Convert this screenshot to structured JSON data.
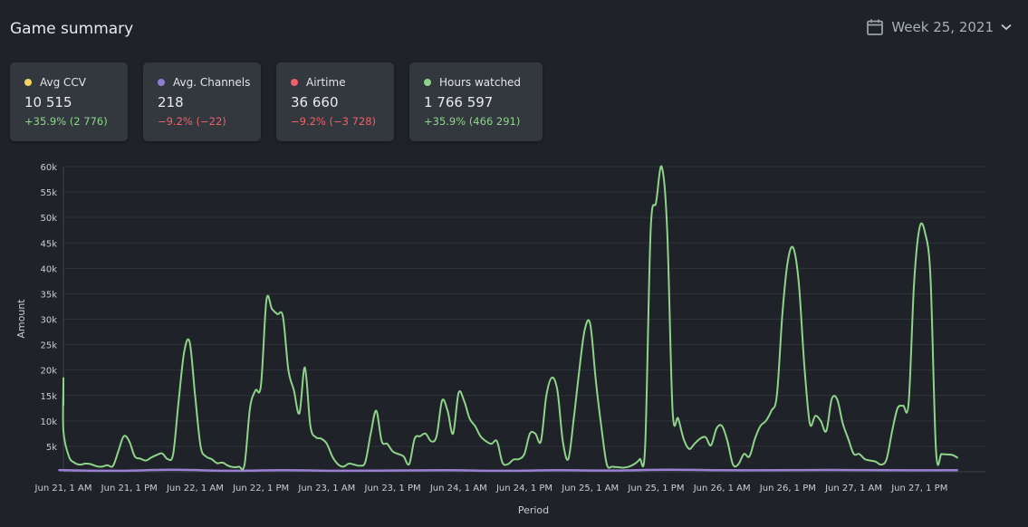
{
  "header": {
    "title": "Game summary",
    "week_label": "Week 25, 2021",
    "calendar_icon": "calendar-icon",
    "chevron_icon": "chevron-down-icon"
  },
  "cards": [
    {
      "label": "Avg CCV",
      "value": "10 515",
      "change": "+35.9% (2 776)",
      "dot_color": "#f3d463",
      "change_color": "#8fd38a"
    },
    {
      "label": "Avg. Channels",
      "value": "218",
      "change": "−9.2% (−22)",
      "dot_color": "#8c7fd1",
      "change_color": "#f0606a"
    },
    {
      "label": "Airtime",
      "value": "36 660",
      "change": "−9.2% (−3 728)",
      "dot_color": "#f0606a",
      "change_color": "#f0606a"
    },
    {
      "label": "Hours watched",
      "value": "1 766 597",
      "change": "+35.9% (466 291)",
      "dot_color": "#8fd38a",
      "change_color": "#8fd38a"
    }
  ],
  "chart_data": {
    "type": "line",
    "xlabel": "Period",
    "ylabel": "Amount",
    "ylim": [
      0,
      60000
    ],
    "yticks": [
      5000,
      10000,
      15000,
      20000,
      25000,
      30000,
      35000,
      40000,
      45000,
      50000,
      55000,
      60000
    ],
    "ytick_labels": [
      "5k",
      "10k",
      "15k",
      "20k",
      "25k",
      "30k",
      "35k",
      "40k",
      "45k",
      "50k",
      "55k",
      "60k"
    ],
    "xticks": [
      0,
      12,
      24,
      36,
      48,
      60,
      72,
      84,
      96,
      108,
      120,
      132,
      144,
      156
    ],
    "xtick_labels": [
      "Jun 21, 1 AM",
      "Jun 21, 1 PM",
      "Jun 22, 1 AM",
      "Jun 22, 1 PM",
      "Jun 23, 1 AM",
      "Jun 23, 1 PM",
      "Jun 24, 1 AM",
      "Jun 24, 1 PM",
      "Jun 25, 1 AM",
      "Jun 25, 1 PM",
      "Jun 26, 1 AM",
      "Jun 26, 1 PM",
      "Jun 27, 1 AM",
      "Jun 27, 1 PM"
    ],
    "xlim": [
      0,
      168
    ],
    "grid": true,
    "series": [
      {
        "color": "#8fd38a",
        "points": [
          [
            -4,
            13000
          ],
          [
            -3,
            17000
          ],
          [
            -2,
            18000
          ],
          [
            -1,
            17500
          ],
          [
            0,
            8000
          ],
          [
            1,
            3000
          ],
          [
            2,
            1800
          ],
          [
            3,
            1400
          ],
          [
            4,
            1600
          ],
          [
            5,
            1500
          ],
          [
            6,
            1100
          ],
          [
            7,
            1000
          ],
          [
            8,
            1300
          ],
          [
            9,
            1100
          ],
          [
            10,
            4000
          ],
          [
            11,
            7000
          ],
          [
            12,
            6000
          ],
          [
            13,
            3000
          ],
          [
            14,
            2600
          ],
          [
            15,
            2200
          ],
          [
            16,
            2800
          ],
          [
            17,
            3300
          ],
          [
            18,
            3600
          ],
          [
            19,
            2500
          ],
          [
            20,
            3500
          ],
          [
            21,
            14000
          ],
          [
            22,
            23500
          ],
          [
            23,
            25500
          ],
          [
            24,
            15000
          ],
          [
            25,
            5000
          ],
          [
            26,
            3000
          ],
          [
            27,
            2500
          ],
          [
            28,
            1700
          ],
          [
            29,
            1800
          ],
          [
            30,
            1200
          ],
          [
            31,
            900
          ],
          [
            32,
            1000
          ],
          [
            33,
            1400
          ],
          [
            34,
            12500
          ],
          [
            35,
            16000
          ],
          [
            36,
            17000
          ],
          [
            37,
            33800
          ],
          [
            38,
            32000
          ],
          [
            39,
            31000
          ],
          [
            40,
            30500
          ],
          [
            41,
            20000
          ],
          [
            42,
            16000
          ],
          [
            43,
            11500
          ],
          [
            44,
            20500
          ],
          [
            45,
            9000
          ],
          [
            46,
            6800
          ],
          [
            47,
            6500
          ],
          [
            48,
            5500
          ],
          [
            49,
            3000
          ],
          [
            50,
            1500
          ],
          [
            51,
            1000
          ],
          [
            52,
            1600
          ],
          [
            53,
            1400
          ],
          [
            54,
            1200
          ],
          [
            55,
            1900
          ],
          [
            56,
            7500
          ],
          [
            57,
            12000
          ],
          [
            58,
            6000
          ],
          [
            59,
            5500
          ],
          [
            60,
            4000
          ],
          [
            61,
            3500
          ],
          [
            62,
            3000
          ],
          [
            63,
            1500
          ],
          [
            64,
            6500
          ],
          [
            65,
            7000
          ],
          [
            66,
            7500
          ],
          [
            67,
            6000
          ],
          [
            68,
            7000
          ],
          [
            69,
            14000
          ],
          [
            70,
            12000
          ],
          [
            71,
            7500
          ],
          [
            72,
            15500
          ],
          [
            73,
            14000
          ],
          [
            74,
            10500
          ],
          [
            75,
            9000
          ],
          [
            76,
            7000
          ],
          [
            77,
            6000
          ],
          [
            78,
            5500
          ],
          [
            79,
            6000
          ],
          [
            80,
            1800
          ],
          [
            81,
            1500
          ],
          [
            82,
            2400
          ],
          [
            83,
            2500
          ],
          [
            84,
            3500
          ],
          [
            85,
            7500
          ],
          [
            86,
            7500
          ],
          [
            87,
            6000
          ],
          [
            88,
            15000
          ],
          [
            89,
            18500
          ],
          [
            90,
            16000
          ],
          [
            91,
            6000
          ],
          [
            92,
            2500
          ],
          [
            93,
            10500
          ],
          [
            94,
            20000
          ],
          [
            95,
            28000
          ],
          [
            96,
            29000
          ],
          [
            97,
            18000
          ],
          [
            98,
            9000
          ],
          [
            99,
            1500
          ],
          [
            100,
            1000
          ],
          [
            101,
            900
          ],
          [
            102,
            800
          ],
          [
            103,
            1000
          ],
          [
            104,
            1500
          ],
          [
            105,
            2500
          ],
          [
            106,
            5000
          ],
          [
            107,
            47500
          ],
          [
            108,
            53000
          ],
          [
            109,
            60000
          ],
          [
            110,
            48000
          ],
          [
            111,
            12000
          ],
          [
            112,
            10500
          ],
          [
            113,
            6500
          ],
          [
            114,
            4500
          ],
          [
            115,
            5500
          ],
          [
            116,
            6500
          ],
          [
            117,
            6800
          ],
          [
            118,
            5200
          ],
          [
            119,
            8500
          ],
          [
            120,
            9000
          ],
          [
            121,
            6000
          ],
          [
            122,
            1400
          ],
          [
            123,
            1500
          ],
          [
            124,
            3500
          ],
          [
            125,
            3000
          ],
          [
            126,
            6500
          ],
          [
            127,
            9000
          ],
          [
            128,
            10000
          ],
          [
            129,
            12000
          ],
          [
            130,
            15000
          ],
          [
            131,
            31000
          ],
          [
            132,
            41500
          ],
          [
            133,
            44000
          ],
          [
            134,
            37000
          ],
          [
            135,
            21000
          ],
          [
            136,
            9500
          ],
          [
            137,
            11000
          ],
          [
            138,
            10000
          ],
          [
            139,
            8000
          ],
          [
            140,
            14300
          ],
          [
            141,
            14200
          ],
          [
            142,
            9500
          ],
          [
            143,
            6500
          ],
          [
            144,
            3500
          ],
          [
            145,
            3500
          ],
          [
            146,
            2500
          ],
          [
            147,
            2200
          ],
          [
            148,
            2000
          ],
          [
            149,
            1400
          ],
          [
            150,
            2500
          ],
          [
            151,
            8000
          ],
          [
            152,
            12500
          ],
          [
            153,
            13000
          ],
          [
            154,
            13500
          ],
          [
            155,
            37000
          ],
          [
            156,
            48000
          ],
          [
            157,
            47000
          ],
          [
            158,
            38000
          ],
          [
            159,
            4000
          ],
          [
            160,
            3500
          ],
          [
            161,
            3400
          ],
          [
            162,
            3300
          ],
          [
            163,
            2700
          ]
        ]
      },
      {
        "color": "#9b7fd3",
        "points": [
          [
            -4,
            300
          ],
          [
            0,
            300
          ],
          [
            10,
            200
          ],
          [
            20,
            400
          ],
          [
            30,
            200
          ],
          [
            40,
            300
          ],
          [
            50,
            200
          ],
          [
            60,
            250
          ],
          [
            70,
            300
          ],
          [
            80,
            200
          ],
          [
            90,
            300
          ],
          [
            100,
            250
          ],
          [
            110,
            400
          ],
          [
            120,
            300
          ],
          [
            130,
            300
          ],
          [
            140,
            350
          ],
          [
            150,
            300
          ],
          [
            163,
            300
          ]
        ]
      }
    ]
  }
}
